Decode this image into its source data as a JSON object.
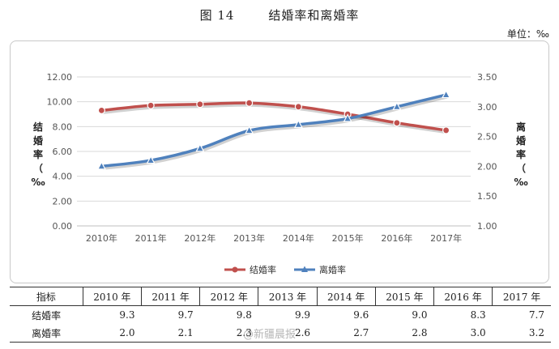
{
  "figure": {
    "number": "图 14",
    "title": "结婚率和离婚率",
    "unit": "单位：‰"
  },
  "chart_data": {
    "type": "line",
    "categories": [
      "2010年",
      "2011年",
      "2012年",
      "2013年",
      "2014年",
      "2015年",
      "2016年",
      "2017年"
    ],
    "series": [
      {
        "name": "结婚率",
        "axis": "left",
        "color": "#c0504d",
        "marker": "circle",
        "values": [
          9.3,
          9.7,
          9.8,
          9.9,
          9.6,
          9.0,
          8.3,
          7.7
        ]
      },
      {
        "name": "离婚率",
        "axis": "right",
        "color": "#4f81bd",
        "marker": "triangle",
        "values": [
          2.0,
          2.1,
          2.3,
          2.6,
          2.7,
          2.8,
          3.0,
          3.2
        ]
      }
    ],
    "y_left": {
      "label": [
        "结",
        "婚",
        "率",
        "（",
        "‰"
      ],
      "ticks": [
        "12.00",
        "10.00",
        "8.00",
        "6.00",
        "4.00",
        "2.00",
        "0.00"
      ],
      "ylim": [
        0,
        12
      ]
    },
    "y_right": {
      "label": [
        "离",
        "婚",
        "率",
        "（",
        "‰"
      ],
      "ticks": [
        "3.50",
        "3.00",
        "2.50",
        "2.00",
        "1.50",
        "1.00"
      ],
      "ylim": [
        1.0,
        3.5
      ]
    },
    "grid": true,
    "legend": "bottom-center"
  },
  "table": {
    "header": [
      "指标",
      "2010 年",
      "2011 年",
      "2012 年",
      "2013 年",
      "2014 年",
      "2015 年",
      "2016 年",
      "2017 年"
    ],
    "rows": [
      {
        "label": "结婚率",
        "values": [
          "9.3",
          "9.7",
          "9.8",
          "9.9",
          "9.6",
          "9.0",
          "8.3",
          "7.7"
        ]
      },
      {
        "label": "离婚率",
        "values": [
          "2.0",
          "2.1",
          "2.3",
          "2.6",
          "2.7",
          "2.8",
          "3.0",
          "3.2"
        ]
      }
    ]
  },
  "watermark": "@新疆晨报"
}
